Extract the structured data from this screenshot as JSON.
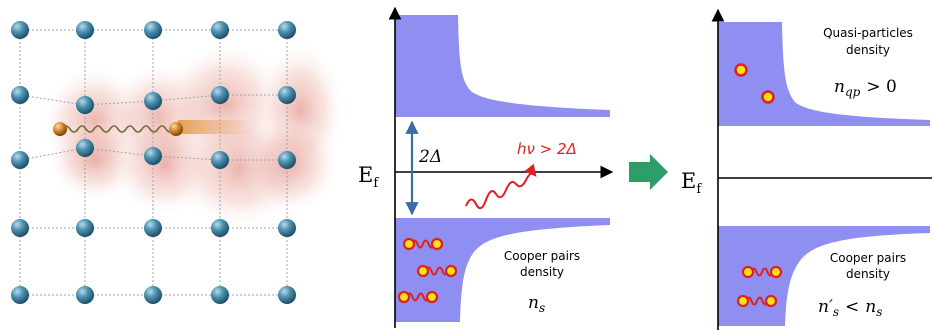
{
  "lattice": {
    "atom_color": "#4a8cab",
    "electron_color": "#c87a1e",
    "cloud_color": "#e8a9a0"
  },
  "panel_before": {
    "fermi_label": "E",
    "fermi_sub": "f",
    "gap_label": "2Δ",
    "photon_label": "hν > 2Δ",
    "pairs_label_line1": "Cooper pairs",
    "pairs_label_line2": "density",
    "pairs_symbol": "n",
    "pairs_symbol_sub": "s"
  },
  "panel_after": {
    "fermi_label": "E",
    "fermi_sub": "f",
    "qp_label_line1": "Quasi-particles",
    "qp_label_line2": "density",
    "qp_symbol": "n",
    "qp_symbol_sub": "qp",
    "qp_relation": "> 0",
    "pairs_label_line1": "Cooper pairs",
    "pairs_label_line2": "density",
    "pairs_symbol": "n′",
    "pairs_symbol_sub": "s",
    "pairs_relation": "<",
    "pairs_rhs_symbol": "n",
    "pairs_rhs_sub": "s"
  },
  "colors": {
    "band": "#8f8ff2",
    "photon": "#e02020",
    "arrow": "#2e9e68",
    "gap_arrow": "#3a6da8",
    "particle_fill": "#f4e21a",
    "particle_stroke": "#e02020"
  }
}
